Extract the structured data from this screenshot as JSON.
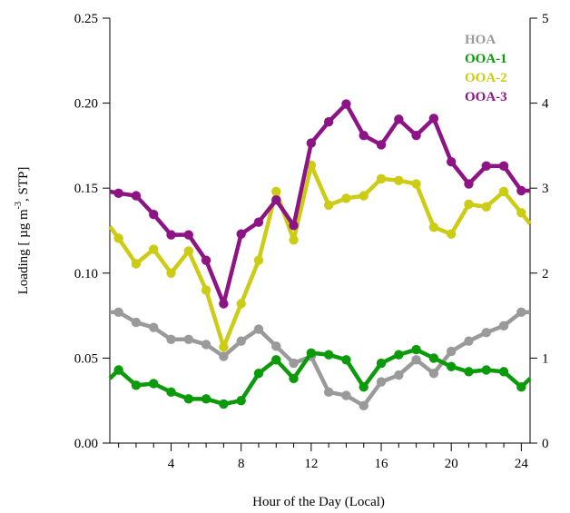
{
  "chart_data": {
    "type": "line",
    "xlabel": "Hour of the Day (Local)",
    "ylabel": {
      "prefix": "Loading [ µg m",
      "superscript": "-3",
      "suffix": ", STP]"
    },
    "x_ticks": [
      4,
      8,
      12,
      16,
      20,
      24
    ],
    "x_range": [
      0.5,
      24.5
    ],
    "y_left_range": [
      0,
      0.25
    ],
    "y_left_ticks": [
      "0.00",
      "0.05",
      "0.10",
      "0.15",
      "0.20",
      "0.25"
    ],
    "y_right_range": [
      0,
      5
    ],
    "y_right_ticks": [
      "0",
      "1",
      "2",
      "3",
      "4",
      "5"
    ],
    "grid": false,
    "legend_position": "top-right",
    "x": [
      1,
      2,
      3,
      4,
      5,
      6,
      7,
      8,
      9,
      10,
      11,
      12,
      13,
      14,
      15,
      16,
      17,
      18,
      19,
      20,
      21,
      22,
      23,
      24
    ],
    "series": [
      {
        "name": "HOA",
        "color": "#9a9a9a",
        "axis": "left",
        "values": [
          0.077,
          0.071,
          0.068,
          0.061,
          0.061,
          0.058,
          0.051,
          0.06,
          0.067,
          0.057,
          0.047,
          0.051,
          0.03,
          0.028,
          0.022,
          0.036,
          0.04,
          0.049,
          0.041,
          0.054,
          0.06,
          0.065,
          0.069,
          0.077
        ],
        "start_value": 0.077,
        "end_value": 0.077
      },
      {
        "name": "OOA-1",
        "color": "#0a9a0a",
        "axis": "left",
        "values": [
          0.043,
          0.034,
          0.035,
          0.03,
          0.026,
          0.026,
          0.023,
          0.025,
          0.041,
          0.049,
          0.038,
          0.053,
          0.052,
          0.049,
          0.033,
          0.047,
          0.052,
          0.055,
          0.05,
          0.045,
          0.042,
          0.043,
          0.042,
          0.033
        ],
        "start_value": 0.038,
        "end_value": 0.038
      },
      {
        "name": "OOA-2",
        "color": "#cccc14",
        "axis": "right",
        "values": [
          2.41,
          2.11,
          2.28,
          2.0,
          2.26,
          1.8,
          1.13,
          1.64,
          2.15,
          2.96,
          2.39,
          3.27,
          2.8,
          2.88,
          2.91,
          3.11,
          3.09,
          3.05,
          2.54,
          2.46,
          2.81,
          2.78,
          2.96,
          2.71
        ],
        "start_value": 2.55,
        "end_value": 2.58
      },
      {
        "name": "OOA-3",
        "color": "#8c1485",
        "axis": "right",
        "values": [
          2.94,
          2.91,
          2.69,
          2.45,
          2.45,
          2.15,
          1.64,
          2.46,
          2.6,
          2.86,
          2.56,
          3.53,
          3.78,
          3.99,
          3.62,
          3.51,
          3.81,
          3.62,
          3.82,
          3.31,
          3.05,
          3.26,
          3.26,
          2.97
        ],
        "start_value": 2.96,
        "end_value": 2.97
      }
    ]
  }
}
